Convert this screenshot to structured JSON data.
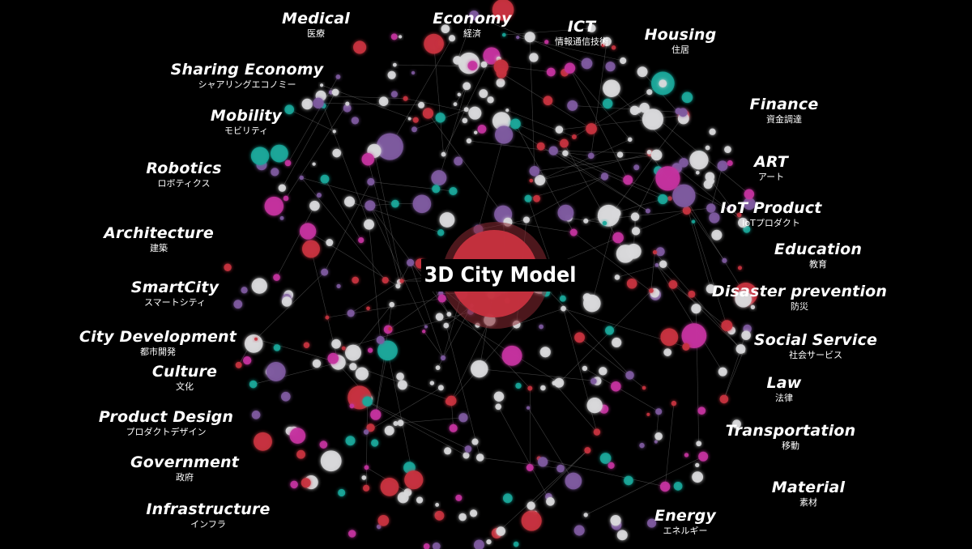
{
  "center": {
    "title": "3D City Model"
  },
  "categories": [
    {
      "en": "Medical",
      "jp": "医療"
    },
    {
      "en": "Economy",
      "jp": "経済"
    },
    {
      "en": "ICT",
      "jp": "情報通信技術"
    },
    {
      "en": "Housing",
      "jp": "住居"
    },
    {
      "en": "Sharing Economy",
      "jp": "シャアリングエコノミー"
    },
    {
      "en": "Finance",
      "jp": "資金調達"
    },
    {
      "en": "Mobility",
      "jp": "モビリティ"
    },
    {
      "en": "ART",
      "jp": "アート"
    },
    {
      "en": "Robotics",
      "jp": "ロボティクス"
    },
    {
      "en": "IoT Product",
      "jp": "IoTプロダクト"
    },
    {
      "en": "Architecture",
      "jp": "建築"
    },
    {
      "en": "Education",
      "jp": "教育"
    },
    {
      "en": "SmartCity",
      "jp": "スマートシティ"
    },
    {
      "en": "Disaster prevention",
      "jp": "防災"
    },
    {
      "en": "City Development",
      "jp": "都市開発"
    },
    {
      "en": "Social Service",
      "jp": "社会サービス"
    },
    {
      "en": "Culture",
      "jp": "文化"
    },
    {
      "en": "Law",
      "jp": "法律"
    },
    {
      "en": "Product Design",
      "jp": "プロダクトデザイン"
    },
    {
      "en": "Transportation",
      "jp": "移動"
    },
    {
      "en": "Government",
      "jp": "政府"
    },
    {
      "en": "Material",
      "jp": "素材"
    },
    {
      "en": "Infrastructure",
      "jp": "インフラ"
    },
    {
      "en": "Energy",
      "jp": "エネルギー"
    }
  ],
  "colors": {
    "background": "#000000",
    "node_red": "#c8323f",
    "node_magenta": "#c4339e",
    "node_teal": "#1aa79a",
    "node_purple": "#7e5aa0",
    "node_white": "#d9d9dc",
    "edge": "#8a8a8a",
    "label": "#ffffff"
  }
}
